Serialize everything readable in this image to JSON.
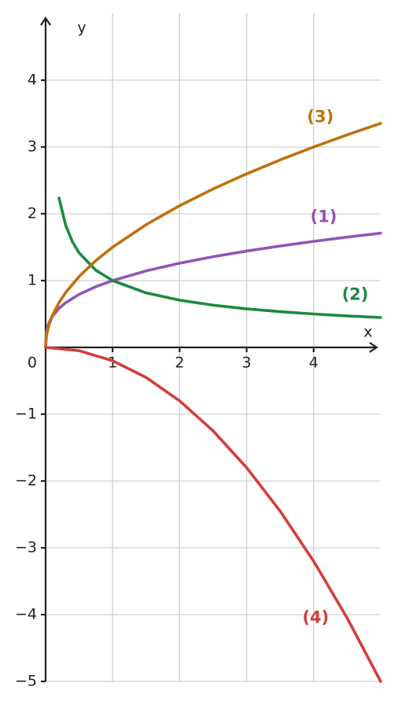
{
  "chart_data": {
    "type": "line",
    "xlabel": "x",
    "ylabel": "y",
    "xlim": [
      0,
      5
    ],
    "ylim": [
      -5,
      5
    ],
    "xticks": [
      1,
      2,
      3,
      4
    ],
    "yticks": [
      {
        "value": -5,
        "label": "−5"
      },
      {
        "value": -4,
        "label": "−4"
      },
      {
        "value": -3,
        "label": "−3"
      },
      {
        "value": -2,
        "label": "−2"
      },
      {
        "value": -1,
        "label": "−1"
      },
      0,
      1,
      2,
      3,
      4
    ],
    "grid": true,
    "series": [
      {
        "name": "(1)",
        "color": "#9155b8",
        "x": [
          0,
          0.01,
          0.02,
          0.05,
          0.1,
          0.2,
          0.3,
          0.5,
          0.75,
          1,
          1.5,
          2,
          2.5,
          3,
          3.5,
          4,
          4.5,
          5
        ],
        "values": [
          0,
          0.215,
          0.271,
          0.368,
          0.464,
          0.585,
          0.669,
          0.794,
          0.909,
          1,
          1.145,
          1.26,
          1.357,
          1.442,
          1.518,
          1.587,
          1.651,
          1.71
        ]
      },
      {
        "name": "(2)",
        "color": "#1b8a40",
        "x": [
          0.2,
          0.3,
          0.4,
          0.5,
          0.75,
          1,
          1.5,
          2,
          2.5,
          3,
          3.5,
          4,
          4.5,
          5
        ],
        "values": [
          2.236,
          1.826,
          1.581,
          1.414,
          1.155,
          1,
          0.816,
          0.707,
          0.632,
          0.577,
          0.535,
          0.5,
          0.471,
          0.447
        ]
      },
      {
        "name": "(3)",
        "color": "#c0700c",
        "x": [
          0,
          0.01,
          0.02,
          0.05,
          0.1,
          0.2,
          0.3,
          0.5,
          0.75,
          1,
          1.5,
          2,
          2.5,
          3,
          3.5,
          4,
          4.5,
          5
        ],
        "values": [
          0,
          0.15,
          0.212,
          0.335,
          0.474,
          0.671,
          0.822,
          1.061,
          1.299,
          1.5,
          1.837,
          2.121,
          2.372,
          2.598,
          2.806,
          3,
          3.182,
          3.354
        ]
      },
      {
        "name": "(4)",
        "color": "#d23f3a",
        "x": [
          0,
          0.5,
          1,
          1.5,
          2,
          2.5,
          3,
          3.5,
          4,
          4.5,
          5
        ],
        "values": [
          0,
          -0.05,
          -0.2,
          -0.45,
          -0.8,
          -1.25,
          -1.8,
          -2.45,
          -3.2,
          -4.05,
          -5
        ]
      }
    ]
  }
}
